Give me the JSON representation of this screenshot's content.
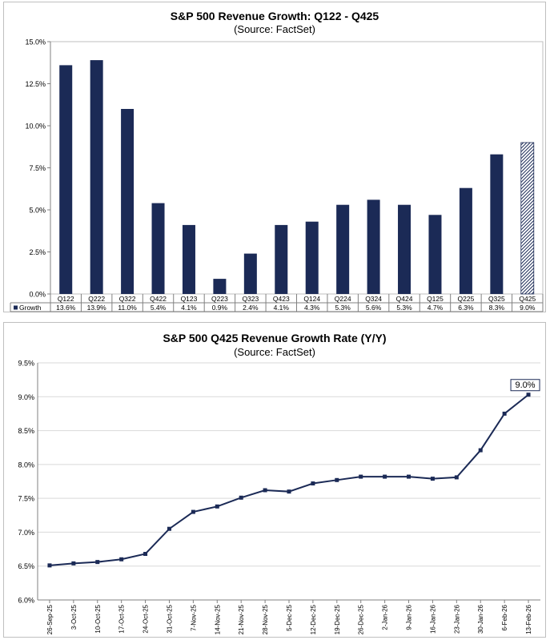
{
  "chart_data": [
    {
      "type": "bar",
      "title": "S&P 500 Revenue Growth: Q122 - Q425",
      "subtitle": "(Source: FactSet)",
      "categories": [
        "Q122",
        "Q222",
        "Q322",
        "Q422",
        "Q123",
        "Q223",
        "Q323",
        "Q423",
        "Q124",
        "Q224",
        "Q324",
        "Q424",
        "Q125",
        "Q225",
        "Q325",
        "Q425"
      ],
      "series": [
        {
          "name": "Growth",
          "values": [
            13.6,
            13.9,
            11.0,
            5.4,
            4.1,
            0.9,
            2.4,
            4.1,
            4.3,
            5.3,
            5.6,
            5.3,
            4.7,
            6.3,
            8.3,
            9.0
          ]
        }
      ],
      "data_labels": [
        "13.6%",
        "13.9%",
        "11.0%",
        "5.4%",
        "4.1%",
        "0.9%",
        "2.4%",
        "4.1%",
        "4.3%",
        "5.3%",
        "5.6%",
        "5.3%",
        "4.7%",
        "6.3%",
        "8.3%",
        "9.0%"
      ],
      "yticks": [
        "0.0%",
        "2.5%",
        "5.0%",
        "7.5%",
        "10.0%",
        "12.5%",
        "15.0%"
      ],
      "ylim": [
        0,
        15
      ],
      "xlabel": "",
      "ylabel": "",
      "legend": "data-table",
      "estimate_categories": [
        "Q425"
      ],
      "colors": {
        "bar": "#1b2a56",
        "grid": "#d9d9d9",
        "axis": "#bfbfbf"
      }
    },
    {
      "type": "line",
      "title": "S&P 500 Q425 Revenue Growth Rate (Y/Y)",
      "subtitle": "(Source: FactSet)",
      "x": [
        "26-Sep-25",
        "3-Oct-25",
        "10-Oct-25",
        "17-Oct-25",
        "24-Oct-25",
        "31-Oct-25",
        "7-Nov-25",
        "14-Nov-25",
        "21-Nov-25",
        "28-Nov-25",
        "5-Dec-25",
        "12-Dec-25",
        "19-Dec-25",
        "26-Dec-25",
        "2-Jan-26",
        "9-Jan-26",
        "16-Jan-26",
        "23-Jan-26",
        "30-Jan-26",
        "6-Feb-26",
        "13-Feb-26"
      ],
      "series": [
        {
          "name": "Q425 Revenue Growth",
          "values": [
            6.51,
            6.54,
            6.56,
            6.6,
            6.68,
            7.05,
            7.3,
            7.38,
            7.51,
            7.62,
            7.6,
            7.72,
            7.77,
            7.82,
            7.82,
            7.82,
            7.79,
            7.81,
            8.21,
            8.75,
            9.03
          ]
        }
      ],
      "callout": "9.0%",
      "yticks": [
        "6.0%",
        "6.5%",
        "7.0%",
        "7.5%",
        "8.0%",
        "8.5%",
        "9.0%",
        "9.5%"
      ],
      "ylim": [
        6.0,
        9.5
      ],
      "xlabel": "",
      "ylabel": "",
      "colors": {
        "line": "#1b2a56",
        "grid": "#d9d9d9",
        "axis": "#bfbfbf"
      }
    }
  ]
}
